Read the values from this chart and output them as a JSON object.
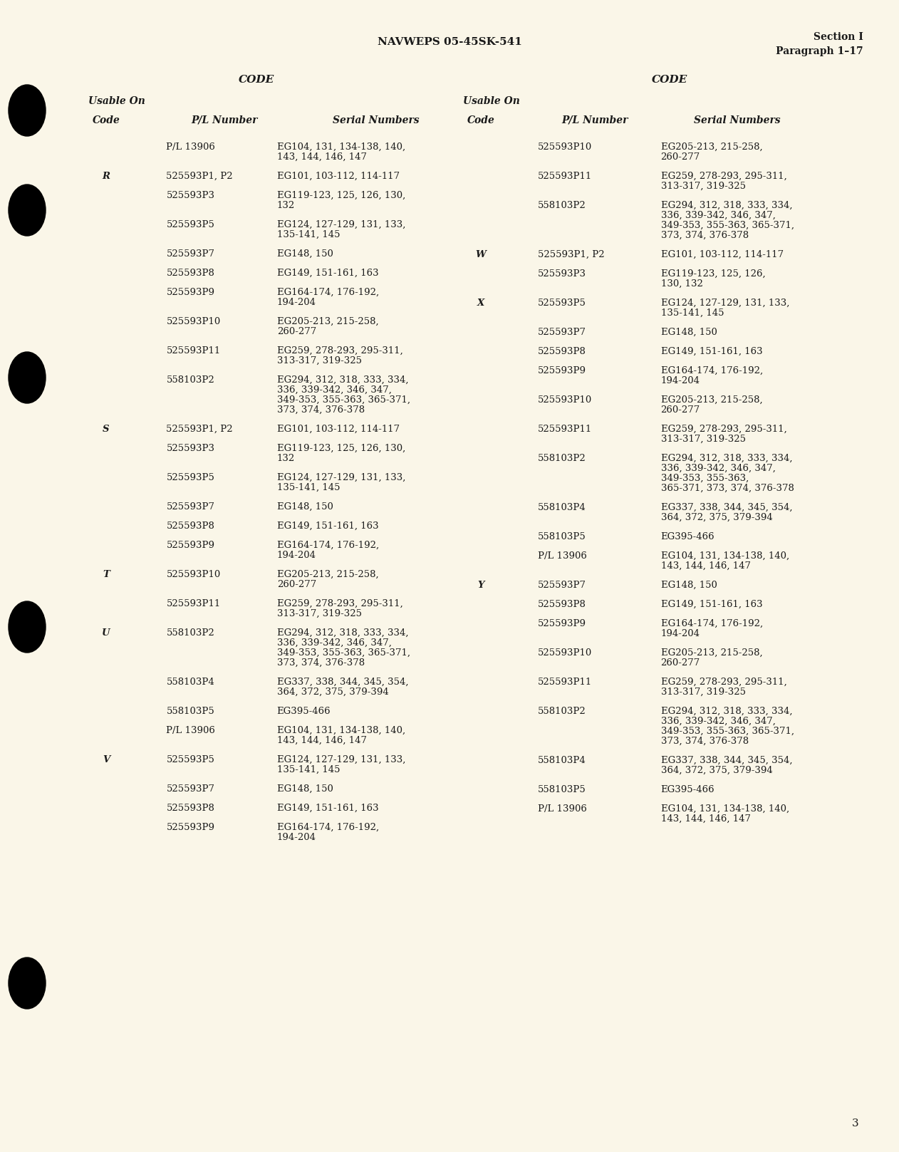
{
  "bg_color": "#faf6e8",
  "text_color": "#1a1a1a",
  "header_center": "NAVWEPS 05-45SK-541",
  "header_right_line1": "Section I",
  "header_right_line2": "Paragraph 1–17",
  "page_number": "3",
  "left_entries": [
    {
      "code": "",
      "pl": "P/L 13906",
      "serial": "EG104, 131, 134-138, 140,\n143, 144, 146, 147"
    },
    {
      "code": "R",
      "pl": "525593P1, P2",
      "serial": "EG101, 103-112, 114-117"
    },
    {
      "code": "",
      "pl": "525593P3",
      "serial": "EG119-123, 125, 126, 130,\n132"
    },
    {
      "code": "",
      "pl": "525593P5",
      "serial": "EG124, 127-129, 131, 133,\n135-141, 145"
    },
    {
      "code": "",
      "pl": "525593P7",
      "serial": "EG148, 150"
    },
    {
      "code": "",
      "pl": "525593P8",
      "serial": "EG149, 151-161, 163"
    },
    {
      "code": "",
      "pl": "525593P9",
      "serial": "EG164-174, 176-192,\n194-204"
    },
    {
      "code": "",
      "pl": "525593P10",
      "serial": "EG205-213, 215-258,\n260-277"
    },
    {
      "code": "",
      "pl": "525593P11",
      "serial": "EG259, 278-293, 295-311,\n313-317, 319-325"
    },
    {
      "code": "",
      "pl": "558103P2",
      "serial": "EG294, 312, 318, 333, 334,\n336, 339-342, 346, 347,\n349-353, 355-363, 365-371,\n373, 374, 376-378"
    },
    {
      "code": "S",
      "pl": "525593P1, P2",
      "serial": "EG101, 103-112, 114-117"
    },
    {
      "code": "",
      "pl": "525593P3",
      "serial": "EG119-123, 125, 126, 130,\n132"
    },
    {
      "code": "",
      "pl": "525593P5",
      "serial": "EG124, 127-129, 131, 133,\n135-141, 145"
    },
    {
      "code": "",
      "pl": "525593P7",
      "serial": "EG148, 150"
    },
    {
      "code": "",
      "pl": "525593P8",
      "serial": "EG149, 151-161, 163"
    },
    {
      "code": "",
      "pl": "525593P9",
      "serial": "EG164-174, 176-192,\n194-204"
    },
    {
      "code": "T",
      "pl": "525593P10",
      "serial": "EG205-213, 215-258,\n260-277"
    },
    {
      "code": "",
      "pl": "525593P11",
      "serial": "EG259, 278-293, 295-311,\n313-317, 319-325"
    },
    {
      "code": "U",
      "pl": "558103P2",
      "serial": "EG294, 312, 318, 333, 334,\n336, 339-342, 346, 347,\n349-353, 355-363, 365-371,\n373, 374, 376-378"
    },
    {
      "code": "",
      "pl": "558103P4",
      "serial": "EG337, 338, 344, 345, 354,\n364, 372, 375, 379-394"
    },
    {
      "code": "",
      "pl": "558103P5",
      "serial": "EG395-466"
    },
    {
      "code": "",
      "pl": "P/L 13906",
      "serial": "EG104, 131, 134-138, 140,\n143, 144, 146, 147"
    },
    {
      "code": "V",
      "pl": "525593P5",
      "serial": "EG124, 127-129, 131, 133,\n135-141, 145"
    },
    {
      "code": "",
      "pl": "525593P7",
      "serial": "EG148, 150"
    },
    {
      "code": "",
      "pl": "525593P8",
      "serial": "EG149, 151-161, 163"
    },
    {
      "code": "",
      "pl": "525593P9",
      "serial": "EG164-174, 176-192,\n194-204"
    }
  ],
  "right_entries": [
    {
      "code": "",
      "pl": "525593P10",
      "serial": "EG205-213, 215-258,\n260-277"
    },
    {
      "code": "",
      "pl": "525593P11",
      "serial": "EG259, 278-293, 295-311,\n313-317, 319-325"
    },
    {
      "code": "",
      "pl": "558103P2",
      "serial": "EG294, 312, 318, 333, 334,\n336, 339-342, 346, 347,\n349-353, 355-363, 365-371,\n373, 374, 376-378"
    },
    {
      "code": "W",
      "pl": "525593P1, P2",
      "serial": "EG101, 103-112, 114-117"
    },
    {
      "code": "",
      "pl": "525593P3",
      "serial": "EG119-123, 125, 126,\n130, 132"
    },
    {
      "code": "X",
      "pl": "525593P5",
      "serial": "EG124, 127-129, 131, 133,\n135-141, 145"
    },
    {
      "code": "",
      "pl": "525593P7",
      "serial": "EG148, 150"
    },
    {
      "code": "",
      "pl": "525593P8",
      "serial": "EG149, 151-161, 163"
    },
    {
      "code": "",
      "pl": "525593P9",
      "serial": "EG164-174, 176-192,\n194-204"
    },
    {
      "code": "",
      "pl": "525593P10",
      "serial": "EG205-213, 215-258,\n260-277"
    },
    {
      "code": "",
      "pl": "525593P11",
      "serial": "EG259, 278-293, 295-311,\n313-317, 319-325"
    },
    {
      "code": "",
      "pl": "558103P2",
      "serial": "EG294, 312, 318, 333, 334,\n336, 339-342, 346, 347,\n349-353, 355-363,\n365-371, 373, 374, 376-378"
    },
    {
      "code": "",
      "pl": "558103P4",
      "serial": "EG337, 338, 344, 345, 354,\n364, 372, 375, 379-394"
    },
    {
      "code": "",
      "pl": "558103P5",
      "serial": "EG395-466"
    },
    {
      "code": "",
      "pl": "P/L 13906",
      "serial": "EG104, 131, 134-138, 140,\n143, 144, 146, 147"
    },
    {
      "code": "Y",
      "pl": "525593P7",
      "serial": "EG148, 150"
    },
    {
      "code": "",
      "pl": "525593P8",
      "serial": "EG149, 151-161, 163"
    },
    {
      "code": "",
      "pl": "525593P9",
      "serial": "EG164-174, 176-192,\n194-204"
    },
    {
      "code": "",
      "pl": "525593P10",
      "serial": "EG205-213, 215-258,\n260-277"
    },
    {
      "code": "",
      "pl": "525593P11",
      "serial": "EG259, 278-293, 295-311,\n313-317, 319-325"
    },
    {
      "code": "",
      "pl": "558103P2",
      "serial": "EG294, 312, 318, 333, 334,\n336, 339-342, 346, 347,\n349-353, 355-363, 365-371,\n373, 374, 376-378"
    },
    {
      "code": "",
      "pl": "558103P4",
      "serial": "EG337, 338, 344, 345, 354,\n364, 372, 375, 379-394"
    },
    {
      "code": "",
      "pl": "558103P5",
      "serial": "EG395-466"
    },
    {
      "code": "",
      "pl": "P/L 13906",
      "serial": "EG104, 131, 134-138, 140,\n143, 144, 146, 147"
    }
  ]
}
